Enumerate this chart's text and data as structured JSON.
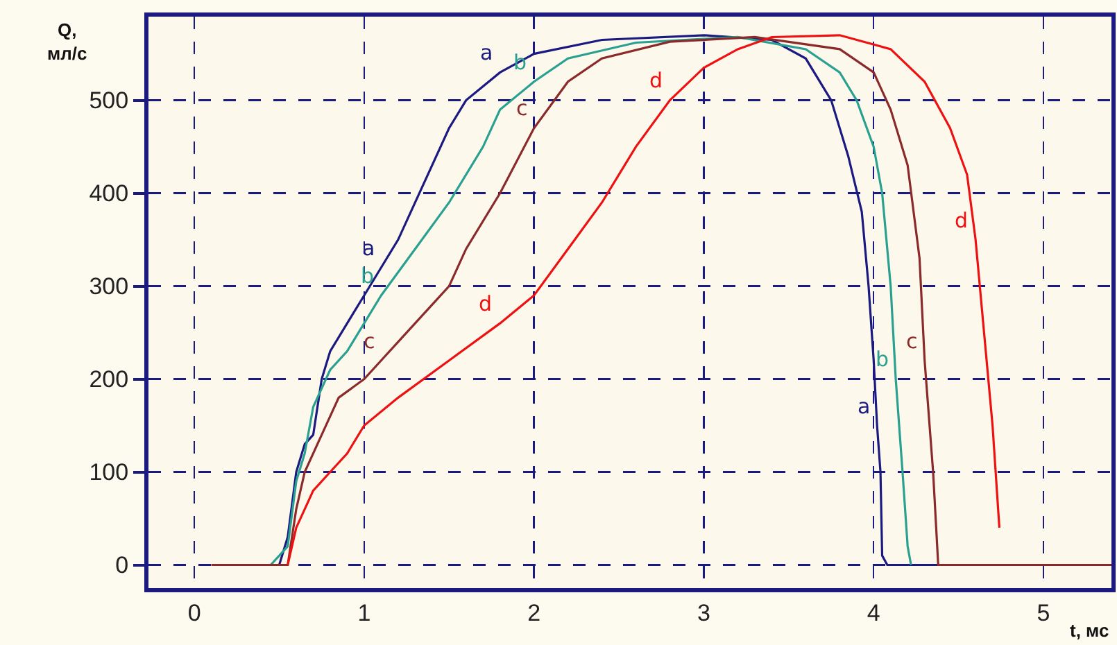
{
  "chart_data": {
    "type": "line",
    "xlabel": "t, мс",
    "ylabel": "Q, мл/с",
    "xlim": [
      -0.27,
      5.4
    ],
    "ylim": [
      -25,
      590
    ],
    "xticks": [
      0,
      1,
      2,
      3,
      4,
      5
    ],
    "yticks": [
      0,
      100,
      200,
      300,
      400,
      500
    ],
    "grid": true,
    "legend": false,
    "marker": "none",
    "line_style": "solid",
    "series": [
      {
        "name": "a",
        "color": "#1a1a80",
        "x": [
          0.5,
          0.55,
          0.6,
          0.65,
          0.7,
          0.75,
          0.8,
          0.9,
          1.0,
          1.1,
          1.2,
          1.3,
          1.4,
          1.5,
          1.6,
          1.8,
          2.0,
          2.4,
          3.0,
          3.4,
          3.6,
          3.75,
          3.85,
          3.93,
          3.97,
          4.0,
          4.02,
          4.04,
          4.05,
          4.08,
          4.38
        ],
        "values": [
          0,
          30,
          100,
          130,
          140,
          200,
          230,
          260,
          290,
          320,
          350,
          390,
          430,
          470,
          500,
          530,
          550,
          565,
          570,
          565,
          545,
          500,
          440,
          380,
          300,
          220,
          150,
          100,
          10,
          0,
          0
        ]
      },
      {
        "name": "b",
        "color": "#2aa090",
        "x": [
          0.45,
          0.55,
          0.6,
          0.65,
          0.7,
          0.8,
          0.9,
          1.0,
          1.1,
          1.3,
          1.5,
          1.7,
          1.8,
          2.0,
          2.2,
          2.6,
          3.2,
          3.6,
          3.8,
          3.9,
          4.0,
          4.05,
          4.1,
          4.13,
          4.17,
          4.2,
          4.22
        ],
        "values": [
          0,
          20,
          90,
          120,
          170,
          210,
          230,
          260,
          290,
          340,
          390,
          450,
          490,
          520,
          545,
          562,
          568,
          555,
          530,
          500,
          450,
          400,
          300,
          200,
          100,
          20,
          0
        ]
      },
      {
        "name": "c",
        "color": "#8b2a2a",
        "x": [
          0.1,
          0.4,
          0.55,
          0.6,
          0.65,
          0.75,
          0.85,
          1.0,
          1.1,
          1.3,
          1.5,
          1.6,
          1.8,
          2.0,
          2.2,
          2.4,
          2.8,
          3.3,
          3.8,
          4.0,
          4.1,
          4.2,
          4.27,
          4.3,
          4.35,
          4.38,
          5.4
        ],
        "values": [
          0,
          0,
          0,
          60,
          100,
          140,
          180,
          200,
          220,
          260,
          300,
          340,
          400,
          470,
          520,
          545,
          563,
          568,
          555,
          530,
          490,
          430,
          330,
          220,
          100,
          0,
          0
        ]
      },
      {
        "name": "d",
        "color": "#ee1111",
        "x": [
          0.55,
          0.6,
          0.7,
          0.8,
          0.9,
          1.0,
          1.2,
          1.5,
          1.8,
          2.0,
          2.2,
          2.4,
          2.6,
          2.8,
          3.0,
          3.2,
          3.4,
          3.8,
          4.1,
          4.3,
          4.45,
          4.55,
          4.6,
          4.65,
          4.7,
          4.74
        ],
        "values": [
          0,
          40,
          80,
          100,
          120,
          150,
          180,
          220,
          260,
          290,
          340,
          390,
          450,
          500,
          535,
          555,
          568,
          570,
          555,
          520,
          470,
          420,
          350,
          250,
          150,
          40
        ]
      }
    ]
  }
}
